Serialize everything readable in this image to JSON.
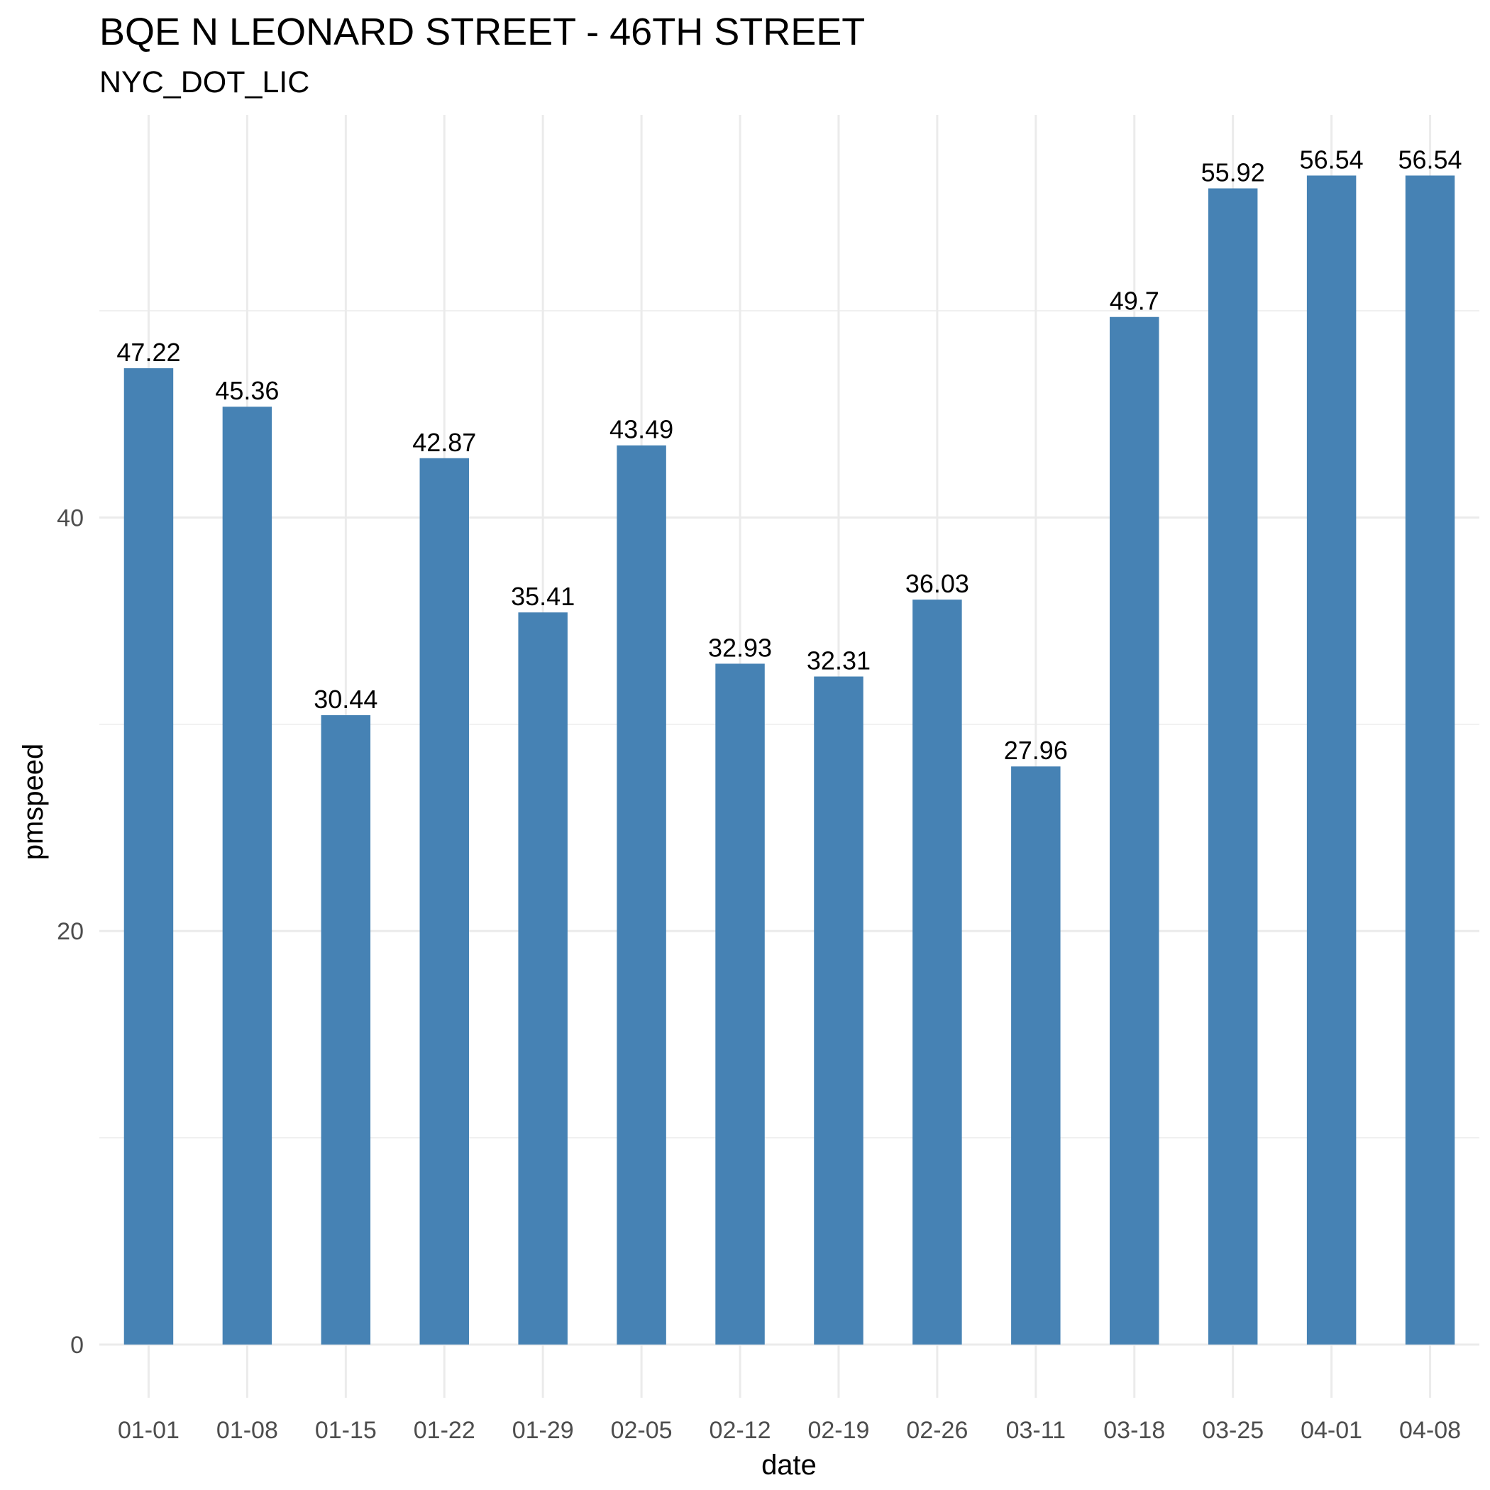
{
  "chart_data": {
    "type": "bar",
    "title": "BQE N LEONARD STREET - 46TH STREET",
    "subtitle": "NYC_DOT_LIC",
    "xlabel": "date",
    "ylabel": "pmspeed",
    "categories": [
      "01-01",
      "01-08",
      "01-15",
      "01-22",
      "01-29",
      "02-05",
      "02-12",
      "02-19",
      "02-26",
      "03-11",
      "03-18",
      "03-25",
      "04-01",
      "04-08"
    ],
    "values": [
      47.22,
      45.36,
      30.44,
      42.87,
      35.41,
      43.49,
      32.93,
      32.31,
      36.03,
      27.96,
      49.7,
      55.92,
      56.54,
      56.54
    ],
    "data_labels": [
      "47.22",
      "45.36",
      "30.44",
      "42.87",
      "35.41",
      "43.49",
      "32.93",
      "32.31",
      "36.03",
      "27.96",
      "49.7",
      "55.92",
      "56.54",
      "56.54"
    ],
    "y_ticks": [
      0,
      20,
      40
    ],
    "y_tick_labels": [
      "0",
      "20",
      "40"
    ],
    "ylim": [
      0,
      59.4
    ],
    "grid": true,
    "legend": "none",
    "bar_color": "#4682b4",
    "grid_color": "#ebebeb"
  }
}
